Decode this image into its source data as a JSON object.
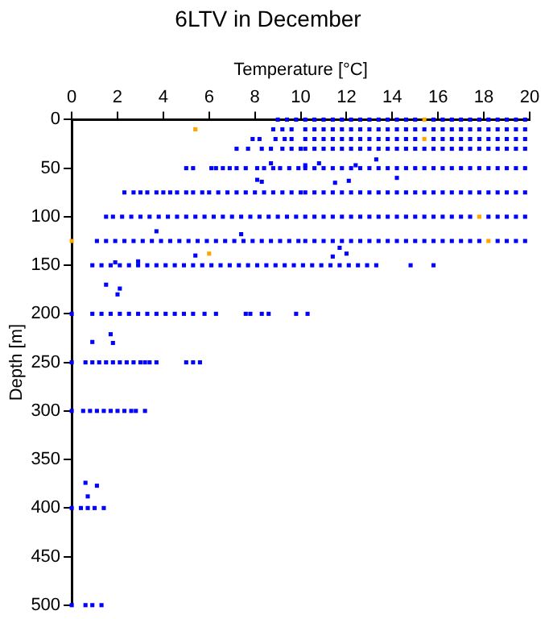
{
  "chart_data": {
    "type": "scatter",
    "title": "6LTV in December",
    "xlabel": "Temperature [°C]",
    "ylabel": "Depth [m]",
    "xlim": [
      0,
      20
    ],
    "xticks": [
      0,
      2,
      4,
      6,
      8,
      10,
      12,
      14,
      16,
      18,
      20
    ],
    "ylim": [
      500,
      0
    ],
    "yticks": [
      0,
      50,
      100,
      150,
      200,
      250,
      300,
      350,
      400,
      450,
      500
    ],
    "marker": "square",
    "grid": false,
    "series": [
      {
        "color": "#0000ff",
        "x": [
          9,
          9.4,
          9.8,
          10.2,
          10.6,
          11,
          11.4,
          11.8,
          12.2,
          12.6,
          13,
          13.4,
          13.8,
          14.2,
          14.6,
          15,
          15.8,
          16.2,
          16.6,
          17,
          17.4,
          17.8,
          18.2,
          18.6,
          19,
          19.4,
          19.8
        ],
        "values": [
          0,
          0,
          0,
          0,
          0,
          0,
          0,
          0,
          0,
          0,
          0,
          0,
          0,
          0,
          0,
          0,
          0,
          0,
          0,
          0,
          0,
          0,
          0,
          0,
          0,
          0,
          0
        ]
      },
      {
        "color": "#0000ff",
        "x": [
          8.8,
          9.2,
          9.6,
          10.2,
          10.6,
          11,
          11.4,
          11.8,
          12.2,
          12.6,
          13,
          13.4,
          13.8,
          14.2,
          14.6,
          15,
          15.4,
          15.8,
          16.2,
          16.6,
          17,
          17.4,
          17.8,
          18.2,
          18.6,
          19,
          19.4,
          19.8
        ],
        "values": [
          10,
          10,
          10,
          10,
          10,
          10,
          10,
          10,
          10,
          10,
          10,
          10,
          10,
          10,
          10,
          10,
          10,
          10,
          10,
          10,
          10,
          10,
          10,
          10,
          10,
          10,
          10,
          10
        ]
      },
      {
        "color": "#0000ff",
        "x": [
          7.9,
          8.2,
          8.9,
          9.3,
          9.6,
          10.2,
          10.6,
          11,
          11.4,
          11.8,
          12.2,
          12.6,
          13,
          13.4,
          13.8,
          14.2,
          14.6,
          15,
          15.8,
          16.2,
          16.6,
          17,
          17.4,
          17.8,
          18.2,
          18.6,
          19,
          19.4,
          19.8
        ],
        "values": [
          20,
          20,
          20,
          20,
          20,
          20,
          20,
          20,
          20,
          20,
          20,
          20,
          20,
          20,
          20,
          20,
          20,
          20,
          20,
          20,
          20,
          20,
          20,
          20,
          20,
          20,
          20,
          20,
          20
        ]
      },
      {
        "color": "#0000ff",
        "x": [
          7.2,
          7.7,
          8.3,
          8.7,
          9.2,
          9.6,
          10,
          10.2,
          10.6,
          11,
          11.4,
          11.8,
          12.2,
          12.6,
          13,
          13.4,
          13.8,
          14.2,
          14.6,
          15,
          15.4,
          15.8,
          16.2,
          16.6,
          17,
          17.4,
          17.8,
          18.2,
          18.6,
          19,
          19.4,
          19.8
        ],
        "values": [
          30,
          30,
          30,
          30,
          30,
          30,
          30,
          30,
          30,
          30,
          30,
          30,
          30,
          30,
          30,
          30,
          30,
          30,
          30,
          30,
          30,
          30,
          30,
          30,
          30,
          30,
          30,
          30,
          30,
          30,
          30,
          30
        ]
      },
      {
        "color": "#0000ff",
        "x": [
          5,
          5.3,
          6.1,
          6.3,
          6.6,
          6.9,
          7.2,
          7.6,
          8.1,
          8.4,
          8.8,
          9.1,
          9.5,
          9.9,
          10.2,
          10.6,
          11,
          11.4,
          11.8,
          12.2,
          12.6,
          13,
          13.4,
          13.8,
          14.2,
          14.6,
          15,
          15.4,
          15.8,
          16.2,
          16.6,
          17,
          17.4,
          17.8,
          18.2,
          18.6,
          19,
          19.4,
          19.8
        ],
        "values": [
          50,
          50,
          50,
          50,
          50,
          50,
          50,
          50,
          50,
          50,
          50,
          50,
          50,
          50,
          50,
          50,
          50,
          50,
          50,
          50,
          50,
          50,
          50,
          50,
          50,
          50,
          50,
          50,
          50,
          50,
          50,
          50,
          50,
          50,
          50,
          50,
          50,
          50,
          50
        ]
      },
      {
        "color": "#0000ff",
        "x": [
          2.3,
          2.7,
          3,
          3.3,
          3.7,
          4,
          4.3,
          4.6,
          5,
          5.3,
          5.7,
          6,
          6.4,
          6.8,
          7.2,
          7.6,
          8,
          8.4,
          8.8,
          9.2,
          9.6,
          10,
          10.2,
          10.6,
          11,
          11.4,
          11.8,
          12.2,
          12.6,
          13,
          13.4,
          13.8,
          14.2,
          14.6,
          15,
          15.4,
          15.8,
          16.2,
          16.6,
          17,
          17.4,
          17.8,
          18.2,
          18.6,
          19,
          19.4,
          19.8
        ],
        "values": [
          75,
          75,
          75,
          75,
          75,
          75,
          75,
          75,
          75,
          75,
          75,
          75,
          75,
          75,
          75,
          75,
          75,
          75,
          75,
          75,
          75,
          75,
          75,
          75,
          75,
          75,
          75,
          75,
          75,
          75,
          75,
          75,
          75,
          75,
          75,
          75,
          75,
          75,
          75,
          75,
          75,
          75,
          75,
          75,
          75,
          75,
          75
        ]
      },
      {
        "color": "#0000ff",
        "x": [
          1.5,
          1.8,
          2.2,
          2.6,
          3,
          3.4,
          3.8,
          4.2,
          4.6,
          5,
          5.4,
          5.8,
          6.2,
          6.6,
          7,
          7.4,
          7.8,
          8.2,
          8.6,
          9,
          9.4,
          9.8,
          10.2,
          10.6,
          11,
          11.4,
          11.8,
          12.2,
          12.6,
          13,
          13.4,
          13.8,
          14.2,
          14.6,
          15,
          15.4,
          15.8,
          16.2,
          16.6,
          17,
          17.4,
          18.2,
          18.6,
          19,
          19.4,
          19.8
        ],
        "values": [
          100,
          100,
          100,
          100,
          100,
          100,
          100,
          100,
          100,
          100,
          100,
          100,
          100,
          100,
          100,
          100,
          100,
          100,
          100,
          100,
          100,
          100,
          100,
          100,
          100,
          100,
          100,
          100,
          100,
          100,
          100,
          100,
          100,
          100,
          100,
          100,
          100,
          100,
          100,
          100,
          100,
          100,
          100,
          100,
          100,
          100
        ]
      },
      {
        "color": "#0000ff",
        "x": [
          1.1,
          1.5,
          1.9,
          2.3,
          2.7,
          3.1,
          3.5,
          3.9,
          4.3,
          4.7,
          5.1,
          5.5,
          5.9,
          6.3,
          6.7,
          7.1,
          7.5,
          7.9,
          8.3,
          8.7,
          9.1,
          9.5,
          9.9,
          10.2,
          10.6,
          11,
          11.4,
          11.8,
          12.2,
          12.6,
          13,
          13.4,
          13.8,
          14.2,
          14.6,
          15,
          15.4,
          15.8,
          16.2,
          16.6,
          17,
          17.4,
          17.8,
          18.6,
          19,
          19.4,
          19.8
        ],
        "values": [
          125,
          125,
          125,
          125,
          125,
          125,
          125,
          125,
          125,
          125,
          125,
          125,
          125,
          125,
          125,
          125,
          125,
          125,
          125,
          125,
          125,
          125,
          125,
          125,
          125,
          125,
          125,
          125,
          125,
          125,
          125,
          125,
          125,
          125,
          125,
          125,
          125,
          125,
          125,
          125,
          125,
          125,
          125,
          125,
          125,
          125,
          125
        ]
      },
      {
        "color": "#0000ff",
        "x": [
          0.9,
          1.3,
          1.7,
          2.1,
          2.5,
          2.9,
          3.3,
          3.7,
          4.1,
          4.5,
          4.9,
          5.3,
          5.7,
          6.1,
          6.5,
          6.9,
          7.3,
          7.7,
          8.1,
          8.5,
          8.9,
          9.3,
          9.7,
          10.1,
          10.5,
          10.9,
          11.3,
          11.7,
          12.1,
          12.5,
          12.9,
          13.3,
          14.8,
          15.8
        ],
        "values": [
          150,
          150,
          150,
          150,
          150,
          150,
          150,
          150,
          150,
          150,
          150,
          150,
          150,
          150,
          150,
          150,
          150,
          150,
          150,
          150,
          150,
          150,
          150,
          150,
          150,
          150,
          150,
          150,
          150,
          150,
          150,
          150,
          150,
          150
        ]
      },
      {
        "color": "#0000ff",
        "x": [
          0,
          0.9,
          1.3,
          1.7,
          2.1,
          2.5,
          2.9,
          3.3,
          3.7,
          4.1,
          4.5,
          4.9,
          5.3,
          5.8,
          6.3,
          7.6,
          7.8,
          8.3,
          8.6,
          9.8,
          10.3
        ],
        "values": [
          200,
          200,
          200,
          200,
          200,
          200,
          200,
          200,
          200,
          200,
          200,
          200,
          200,
          200,
          200,
          200,
          200,
          200,
          200,
          200,
          200
        ]
      },
      {
        "color": "#0000ff",
        "x": [
          0,
          0.6,
          0.9,
          1.2,
          1.5,
          1.8,
          2.1,
          2.4,
          2.7,
          3,
          3.2,
          3.4,
          3.7,
          5,
          5.3,
          5.6
        ],
        "values": [
          250,
          250,
          250,
          250,
          250,
          250,
          250,
          250,
          250,
          250,
          250,
          250,
          250,
          250,
          250,
          250
        ]
      },
      {
        "color": "#0000ff",
        "x": [
          0,
          0.5,
          0.8,
          1.1,
          1.4,
          1.7,
          2,
          2.3,
          2.6,
          2.8,
          3.2
        ],
        "values": [
          300,
          300,
          300,
          300,
          300,
          300,
          300,
          300,
          300,
          300,
          300
        ]
      },
      {
        "color": "#0000ff",
        "x": [
          0,
          0.4,
          0.7,
          1,
          1.4
        ],
        "values": [
          400,
          400,
          400,
          400,
          400
        ]
      },
      {
        "color": "#0000ff",
        "x": [
          0,
          0.6,
          0.9,
          1.3
        ],
        "values": [
          500,
          500,
          500,
          500
        ]
      },
      {
        "color": "#0000ff",
        "x": [
          8.7,
          10.2,
          10.8,
          12.4,
          13.3,
          8.1,
          8.3,
          11.5,
          12.1,
          14.2,
          3.7,
          7.4,
          5.4,
          11.7,
          12,
          11.4,
          1.9,
          2.9,
          1.5,
          2.1,
          2,
          1.7,
          1.8,
          0.9,
          0.6,
          1.1,
          0.7
        ],
        "values": [
          45,
          47,
          45,
          47,
          41,
          62,
          64,
          65,
          63,
          60,
          115,
          118,
          140,
          132,
          138,
          141,
          147,
          146,
          170,
          174,
          180,
          221,
          230,
          229,
          374,
          377,
          388
        ]
      },
      {
        "color": "#ffa500",
        "x": [
          15.4,
          5.4,
          15.4,
          17.8,
          0,
          18.2,
          6
        ],
        "values": [
          0,
          10,
          20,
          100,
          125,
          125,
          138
        ]
      }
    ]
  }
}
